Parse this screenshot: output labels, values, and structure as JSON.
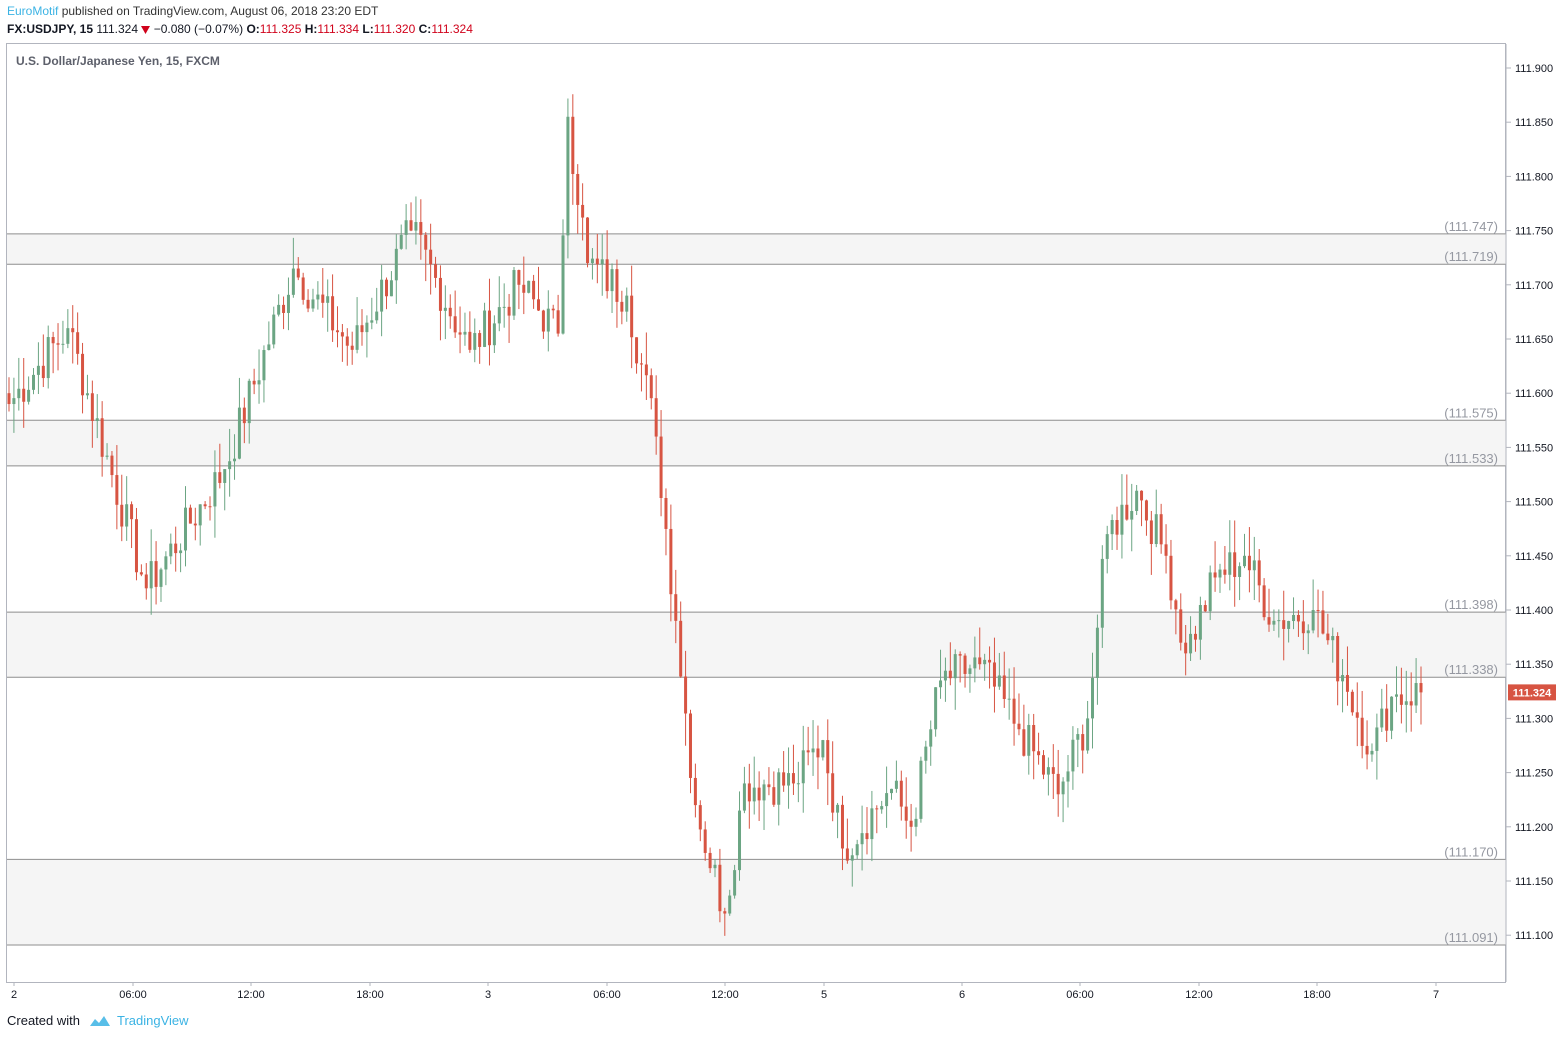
{
  "header": {
    "author": "EuroMotif",
    "published_text": "published on TradingView.com, August 06, 2018 23:20 EDT",
    "symbol": "FX:USDJPY, 15",
    "last": "111.324",
    "change": "−0.080 (−0.07%)",
    "open_label": "O:",
    "open": "111.325",
    "high_label": "H:",
    "high": "111.334",
    "low_label": "L:",
    "low": "111.320",
    "close_label": "C:",
    "close": "111.324"
  },
  "chart_title": "U.S. Dollar/Japanese Yen, 15, FXCM",
  "footer": {
    "created_with": "Created with",
    "brand": "TradingView"
  },
  "colors": {
    "up": "#6ba583",
    "down": "#d75442",
    "level_line": "#8e8e8e",
    "band_fill": "#f5f5f5",
    "last_price": "#d75442"
  },
  "chart_data": {
    "type": "candlestick",
    "title": "U.S. Dollar/Japanese Yen, 15, FXCM",
    "ylim": [
      111.05,
      111.92
    ],
    "y_ticks": [
      "111.900",
      "111.850",
      "111.800",
      "111.750",
      "111.700",
      "111.650",
      "111.600",
      "111.550",
      "111.500",
      "111.450",
      "111.400",
      "111.350",
      "111.300",
      "111.250",
      "111.200",
      "111.150",
      "111.100"
    ],
    "x_ticks": [
      "2",
      "06:00",
      "12:00",
      "18:00",
      "3",
      "06:00",
      "12:00",
      "5",
      "6",
      "06:00",
      "12:00",
      "18:00",
      "7"
    ],
    "last_price": "111.324",
    "levels": [
      {
        "value": 111.747,
        "label": "(111.747)"
      },
      {
        "value": 111.719,
        "label": "(111.719)"
      },
      {
        "value": 111.575,
        "label": "(111.575)"
      },
      {
        "value": 111.533,
        "label": "(111.533)"
      },
      {
        "value": 111.398,
        "label": "(111.398)"
      },
      {
        "value": 111.338,
        "label": "(111.338)"
      },
      {
        "value": 111.17,
        "label": "(111.170)"
      },
      {
        "value": 111.091,
        "label": "(111.091)"
      }
    ],
    "bands": [
      [
        111.719,
        111.747
      ],
      [
        111.533,
        111.575
      ],
      [
        111.338,
        111.398
      ],
      [
        111.091,
        111.17
      ]
    ],
    "key_prices": [
      {
        "t": 0,
        "p": 111.59
      },
      {
        "t": 12,
        "p": 111.66
      },
      {
        "t": 28,
        "p": 111.42
      },
      {
        "t": 44,
        "p": 111.53
      },
      {
        "t": 58,
        "p": 111.715
      },
      {
        "t": 70,
        "p": 111.64
      },
      {
        "t": 82,
        "p": 111.75
      },
      {
        "t": 94,
        "p": 111.64
      },
      {
        "t": 104,
        "p": 111.7
      },
      {
        "t": 112,
        "p": 111.655
      },
      {
        "t": 114,
        "p": 111.855
      },
      {
        "t": 118,
        "p": 111.72
      },
      {
        "t": 126,
        "p": 111.69
      },
      {
        "t": 132,
        "p": 111.56
      },
      {
        "t": 136,
        "p": 111.39
      },
      {
        "t": 140,
        "p": 111.22
      },
      {
        "t": 146,
        "p": 111.12
      },
      {
        "t": 150,
        "p": 111.24
      },
      {
        "t": 160,
        "p": 111.24
      },
      {
        "t": 166,
        "p": 111.28
      },
      {
        "t": 170,
        "p": 111.18
      },
      {
        "t": 180,
        "p": 111.235
      },
      {
        "t": 184,
        "p": 111.2
      },
      {
        "t": 190,
        "p": 111.335
      },
      {
        "t": 198,
        "p": 111.35
      },
      {
        "t": 206,
        "p": 111.29
      },
      {
        "t": 214,
        "p": 111.23
      },
      {
        "t": 220,
        "p": 111.3
      },
      {
        "t": 224,
        "p": 111.47
      },
      {
        "t": 230,
        "p": 111.51
      },
      {
        "t": 236,
        "p": 111.45
      },
      {
        "t": 240,
        "p": 111.36
      },
      {
        "t": 246,
        "p": 111.43
      },
      {
        "t": 252,
        "p": 111.45
      },
      {
        "t": 258,
        "p": 111.39
      },
      {
        "t": 266,
        "p": 111.4
      },
      {
        "t": 272,
        "p": 111.34
      },
      {
        "t": 278,
        "p": 111.27
      },
      {
        "t": 282,
        "p": 111.32
      },
      {
        "t": 288,
        "p": 111.324
      }
    ]
  }
}
